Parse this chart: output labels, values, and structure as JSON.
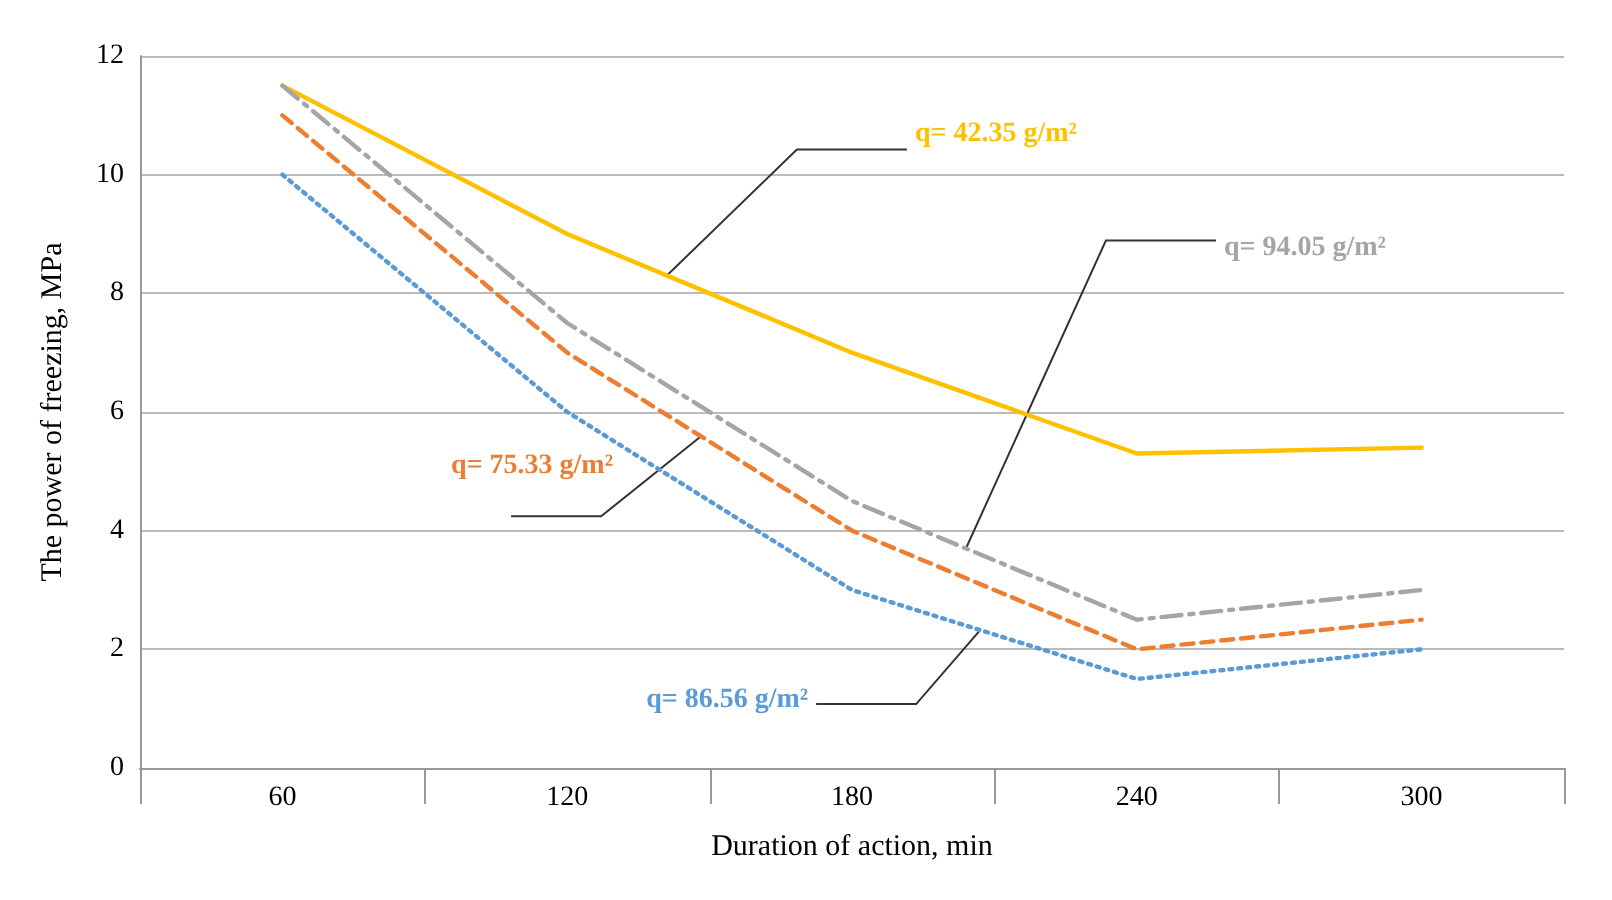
{
  "chart_data": {
    "type": "line",
    "xlabel": "Duration of action, min",
    "ylabel": "The power of freezing, MPa",
    "categories": [
      "60",
      "120",
      "180",
      "240",
      "300"
    ],
    "series": [
      {
        "name": "q= 42.35 g/m²",
        "color": "#ffc000",
        "line_style": "solid",
        "values": [
          11.5,
          9,
          7,
          5.3,
          5.4
        ]
      },
      {
        "name": "q= 94.05 g/m²",
        "color": "#a5a5a5",
        "line_style": "dashdot",
        "values": [
          11.5,
          7.5,
          4.5,
          2.5,
          3.0
        ]
      },
      {
        "name": "q= 75.33 g/m²",
        "color": "#ed7d31",
        "line_style": "dashed",
        "values": [
          11,
          7,
          4,
          2,
          2.5
        ]
      },
      {
        "name": "q= 86.56 g/m²",
        "color": "#5b9bd5",
        "line_style": "dotted",
        "values": [
          10,
          6,
          3,
          1.5,
          2
        ]
      }
    ],
    "ylim": [
      0,
      12
    ],
    "yticks": [
      0,
      2,
      4,
      6,
      8,
      10,
      12
    ],
    "grid": "y",
    "marker": "none",
    "legend": false
  }
}
